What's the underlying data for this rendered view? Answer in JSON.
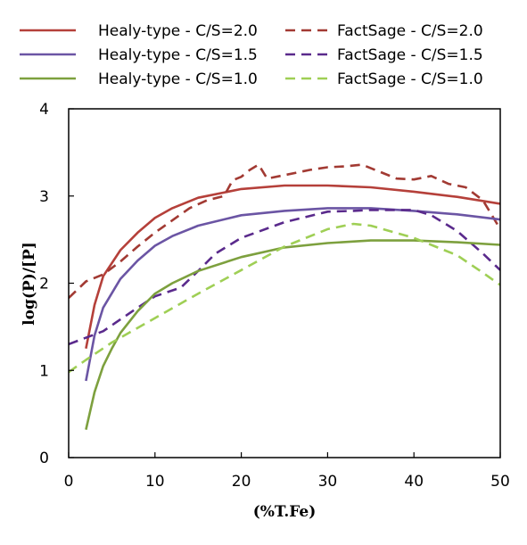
{
  "chart_data": {
    "type": "line",
    "xlabel": "(%T.Fe)",
    "ylabel": "log(P)/[P]",
    "xlim": [
      0,
      50
    ],
    "ylim": [
      0,
      4
    ],
    "xticks": [
      "0",
      "10",
      "20",
      "30",
      "40",
      "50"
    ],
    "yticks": [
      "0",
      "1",
      "2",
      "3",
      "4"
    ],
    "grid": false,
    "legend_position": "top",
    "series": [
      {
        "name": "Healy-type - C/S=2.0",
        "color": "#b5403a",
        "style": "solid",
        "x": [
          2,
          3,
          4,
          6,
          8,
          10,
          12,
          15,
          20,
          25,
          30,
          35,
          40,
          45,
          50
        ],
        "y": [
          1.25,
          1.75,
          2.08,
          2.38,
          2.58,
          2.75,
          2.86,
          2.98,
          3.08,
          3.12,
          3.12,
          3.1,
          3.05,
          2.99,
          2.91
        ]
      },
      {
        "name": "FactSage - C/S=2.0",
        "color": "#a23a33",
        "style": "dashed",
        "x": [
          0,
          2,
          4,
          6,
          8,
          10,
          12,
          14,
          16,
          18,
          19,
          20,
          21,
          22,
          23,
          25,
          28,
          30,
          32,
          34,
          36,
          38,
          40,
          42,
          44,
          46,
          48,
          50
        ],
        "y": [
          1.83,
          2.02,
          2.1,
          2.25,
          2.42,
          2.58,
          2.72,
          2.86,
          2.95,
          3.0,
          3.18,
          3.22,
          3.3,
          3.36,
          3.2,
          3.24,
          3.3,
          3.33,
          3.34,
          3.36,
          3.28,
          3.2,
          3.19,
          3.23,
          3.14,
          3.1,
          2.95,
          2.62
        ]
      },
      {
        "name": "Healy-type - C/S=1.5",
        "color": "#6b55a4",
        "style": "solid",
        "x": [
          2,
          3,
          4,
          6,
          8,
          10,
          12,
          15,
          20,
          25,
          30,
          35,
          40,
          45,
          50
        ],
        "y": [
          0.88,
          1.4,
          1.72,
          2.05,
          2.26,
          2.43,
          2.54,
          2.66,
          2.78,
          2.83,
          2.86,
          2.86,
          2.83,
          2.79,
          2.73
        ]
      },
      {
        "name": "FactSage - C/S=1.5",
        "color": "#5a2a8c",
        "style": "dashed",
        "x": [
          0,
          4,
          8,
          10,
          13,
          15,
          17,
          20,
          25,
          30,
          33,
          35,
          40,
          42,
          45,
          48,
          50
        ],
        "y": [
          1.3,
          1.45,
          1.72,
          1.85,
          1.95,
          2.14,
          2.34,
          2.52,
          2.7,
          2.82,
          2.83,
          2.84,
          2.84,
          2.78,
          2.6,
          2.34,
          2.15
        ]
      },
      {
        "name": "Healy-type - C/S=1.0",
        "color": "#7da03e",
        "style": "solid",
        "x": [
          2,
          3,
          4,
          5,
          6,
          8,
          10,
          12,
          15,
          20,
          25,
          30,
          35,
          40,
          45,
          50
        ],
        "y": [
          0.32,
          0.75,
          1.05,
          1.25,
          1.43,
          1.68,
          1.88,
          2.0,
          2.14,
          2.3,
          2.41,
          2.46,
          2.49,
          2.49,
          2.47,
          2.44
        ]
      },
      {
        "name": "FactSage - C/S=1.0",
        "color": "#9fcf55",
        "style": "dashed",
        "x": [
          0,
          2,
          5,
          10,
          15,
          20,
          25,
          30,
          33,
          35,
          40,
          45,
          48,
          50
        ],
        "y": [
          0.98,
          1.12,
          1.32,
          1.6,
          1.88,
          2.15,
          2.42,
          2.62,
          2.68,
          2.66,
          2.52,
          2.32,
          2.12,
          1.98
        ]
      }
    ]
  }
}
